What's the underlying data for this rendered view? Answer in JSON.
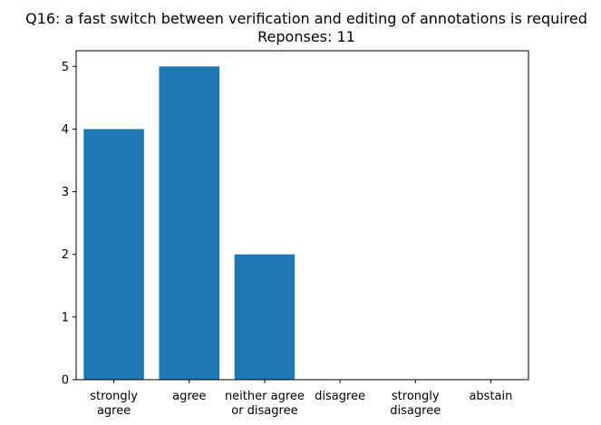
{
  "chart_data": {
    "type": "bar",
    "title": "Q16: a fast switch between verification and editing of annotations is required",
    "subtitle": "Reponses: 11",
    "xlabel": "",
    "ylabel": "",
    "categories": [
      "strongly\nagree",
      "agree",
      "neither agree\nor disagree",
      "disagree",
      "strongly\ndisagree",
      "abstain"
    ],
    "values": [
      4,
      5,
      2,
      0,
      0,
      0
    ],
    "ylim": [
      0,
      5.25
    ],
    "yticks": [
      0,
      1,
      2,
      3,
      4,
      5
    ],
    "bar_color": "#1f77b4",
    "grid": false,
    "legend": "none"
  }
}
